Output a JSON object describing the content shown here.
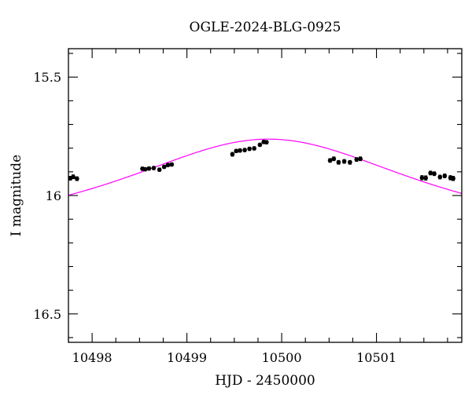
{
  "chart_data": {
    "type": "scatter",
    "title": "OGLE-2024-BLG-0925",
    "xlabel": "HJD - 2450000",
    "ylabel": "I magnitude",
    "xlim": [
      10497.75,
      10501.9
    ],
    "ylim": [
      16.62,
      15.38
    ],
    "y_inverted": true,
    "grid": false,
    "x_ticks": [
      10498,
      10499,
      10500,
      10501
    ],
    "x_tick_labels": [
      "10498",
      "10499",
      "10500",
      "10501"
    ],
    "y_ticks": [
      15.5,
      16,
      16.5
    ],
    "y_tick_labels": [
      "15.5",
      "16",
      "16.5"
    ],
    "model_curve": {
      "color": "#ff00ff",
      "t0": 10499.86,
      "u0": 0.88,
      "tE": 1.95,
      "baseline_mag": 16.16
    },
    "series": [
      {
        "points": [
          {
            "x": 10497.77,
            "y": 15.927,
            "err": 0.008
          },
          {
            "x": 10497.8,
            "y": 15.921,
            "err": 0.008
          },
          {
            "x": 10497.84,
            "y": 15.929,
            "err": 0.008
          },
          {
            "x": 10498.53,
            "y": 15.887,
            "err": 0.007
          },
          {
            "x": 10498.56,
            "y": 15.889,
            "err": 0.007
          },
          {
            "x": 10498.6,
            "y": 15.886,
            "err": 0.007
          },
          {
            "x": 10498.65,
            "y": 15.884,
            "err": 0.007
          },
          {
            "x": 10498.71,
            "y": 15.891,
            "err": 0.007
          },
          {
            "x": 10498.76,
            "y": 15.879,
            "err": 0.007
          },
          {
            "x": 10498.8,
            "y": 15.871,
            "err": 0.007
          },
          {
            "x": 10498.84,
            "y": 15.869,
            "err": 0.007
          },
          {
            "x": 10499.48,
            "y": 15.826,
            "err": 0.008
          },
          {
            "x": 10499.52,
            "y": 15.812,
            "err": 0.007
          },
          {
            "x": 10499.56,
            "y": 15.81,
            "err": 0.007
          },
          {
            "x": 10499.61,
            "y": 15.808,
            "err": 0.007
          },
          {
            "x": 10499.66,
            "y": 15.803,
            "err": 0.007
          },
          {
            "x": 10499.71,
            "y": 15.801,
            "err": 0.007
          },
          {
            "x": 10499.77,
            "y": 15.786,
            "err": 0.007
          },
          {
            "x": 10499.81,
            "y": 15.774,
            "err": 0.007
          },
          {
            "x": 10499.84,
            "y": 15.775,
            "err": 0.007
          },
          {
            "x": 10500.51,
            "y": 15.852,
            "err": 0.008
          },
          {
            "x": 10500.55,
            "y": 15.845,
            "err": 0.008
          },
          {
            "x": 10500.6,
            "y": 15.86,
            "err": 0.008
          },
          {
            "x": 10500.66,
            "y": 15.856,
            "err": 0.008
          },
          {
            "x": 10500.72,
            "y": 15.86,
            "err": 0.008
          },
          {
            "x": 10500.79,
            "y": 15.848,
            "err": 0.008
          },
          {
            "x": 10500.83,
            "y": 15.845,
            "err": 0.008
          },
          {
            "x": 10501.48,
            "y": 15.925,
            "err": 0.009
          },
          {
            "x": 10501.52,
            "y": 15.926,
            "err": 0.009
          },
          {
            "x": 10501.57,
            "y": 15.905,
            "err": 0.008
          },
          {
            "x": 10501.61,
            "y": 15.908,
            "err": 0.008
          },
          {
            "x": 10501.67,
            "y": 15.922,
            "err": 0.008
          },
          {
            "x": 10501.72,
            "y": 15.917,
            "err": 0.008
          },
          {
            "x": 10501.78,
            "y": 15.925,
            "err": 0.009
          },
          {
            "x": 10501.81,
            "y": 15.928,
            "err": 0.009
          }
        ]
      }
    ]
  }
}
